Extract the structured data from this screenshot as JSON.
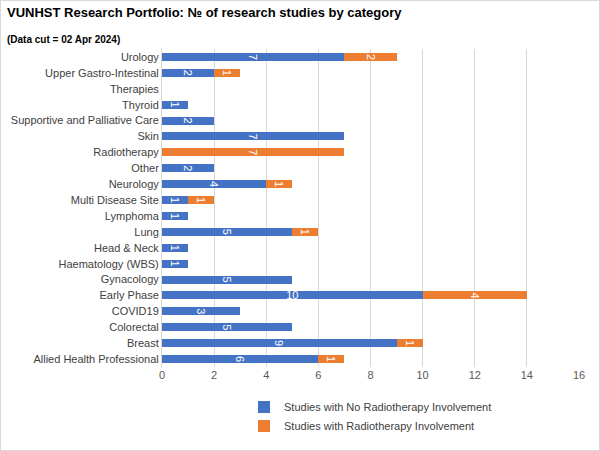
{
  "chart_data": {
    "type": "bar",
    "orientation": "horizontal",
    "stacked": true,
    "data_labels": true,
    "grid": true,
    "legend": "bottom",
    "title": "VUNHST Research Portfolio: № of research studies by category",
    "subtitle": "(Data cut = 02 Apr 2024)",
    "categories": [
      "Allied Health Professional",
      "Breast",
      "Colorectal",
      "COVID19",
      "Early Phase",
      "Gynacology",
      "Haematology (WBS)",
      "Head & Neck",
      "Lung",
      "Lymphoma",
      "Multi Disease Site",
      "Neurology",
      "Other",
      "Radiotherapy",
      "Skin",
      "Supportive and Palliative Care",
      "Thyroid",
      "Therapies",
      "Upper Gastro-Intestinal",
      "Urology"
    ],
    "series": [
      {
        "name": "Studies with No Radiotherapy Involvement",
        "color": "#4472c4",
        "values": [
          6,
          9,
          5,
          3,
          10,
          5,
          1,
          1,
          5,
          1,
          1,
          4,
          2,
          null,
          7,
          2,
          1,
          null,
          2,
          7
        ]
      },
      {
        "name": "Studies with Radiotherapy Involvement",
        "color": "#ed7d31",
        "values": [
          1,
          1,
          null,
          null,
          4,
          null,
          null,
          null,
          1,
          null,
          1,
          1,
          null,
          7,
          null,
          null,
          null,
          null,
          1,
          2
        ]
      }
    ],
    "xlim": [
      0,
      16
    ],
    "xticks": [
      0,
      2,
      4,
      6,
      8,
      10,
      12,
      14,
      16
    ]
  }
}
